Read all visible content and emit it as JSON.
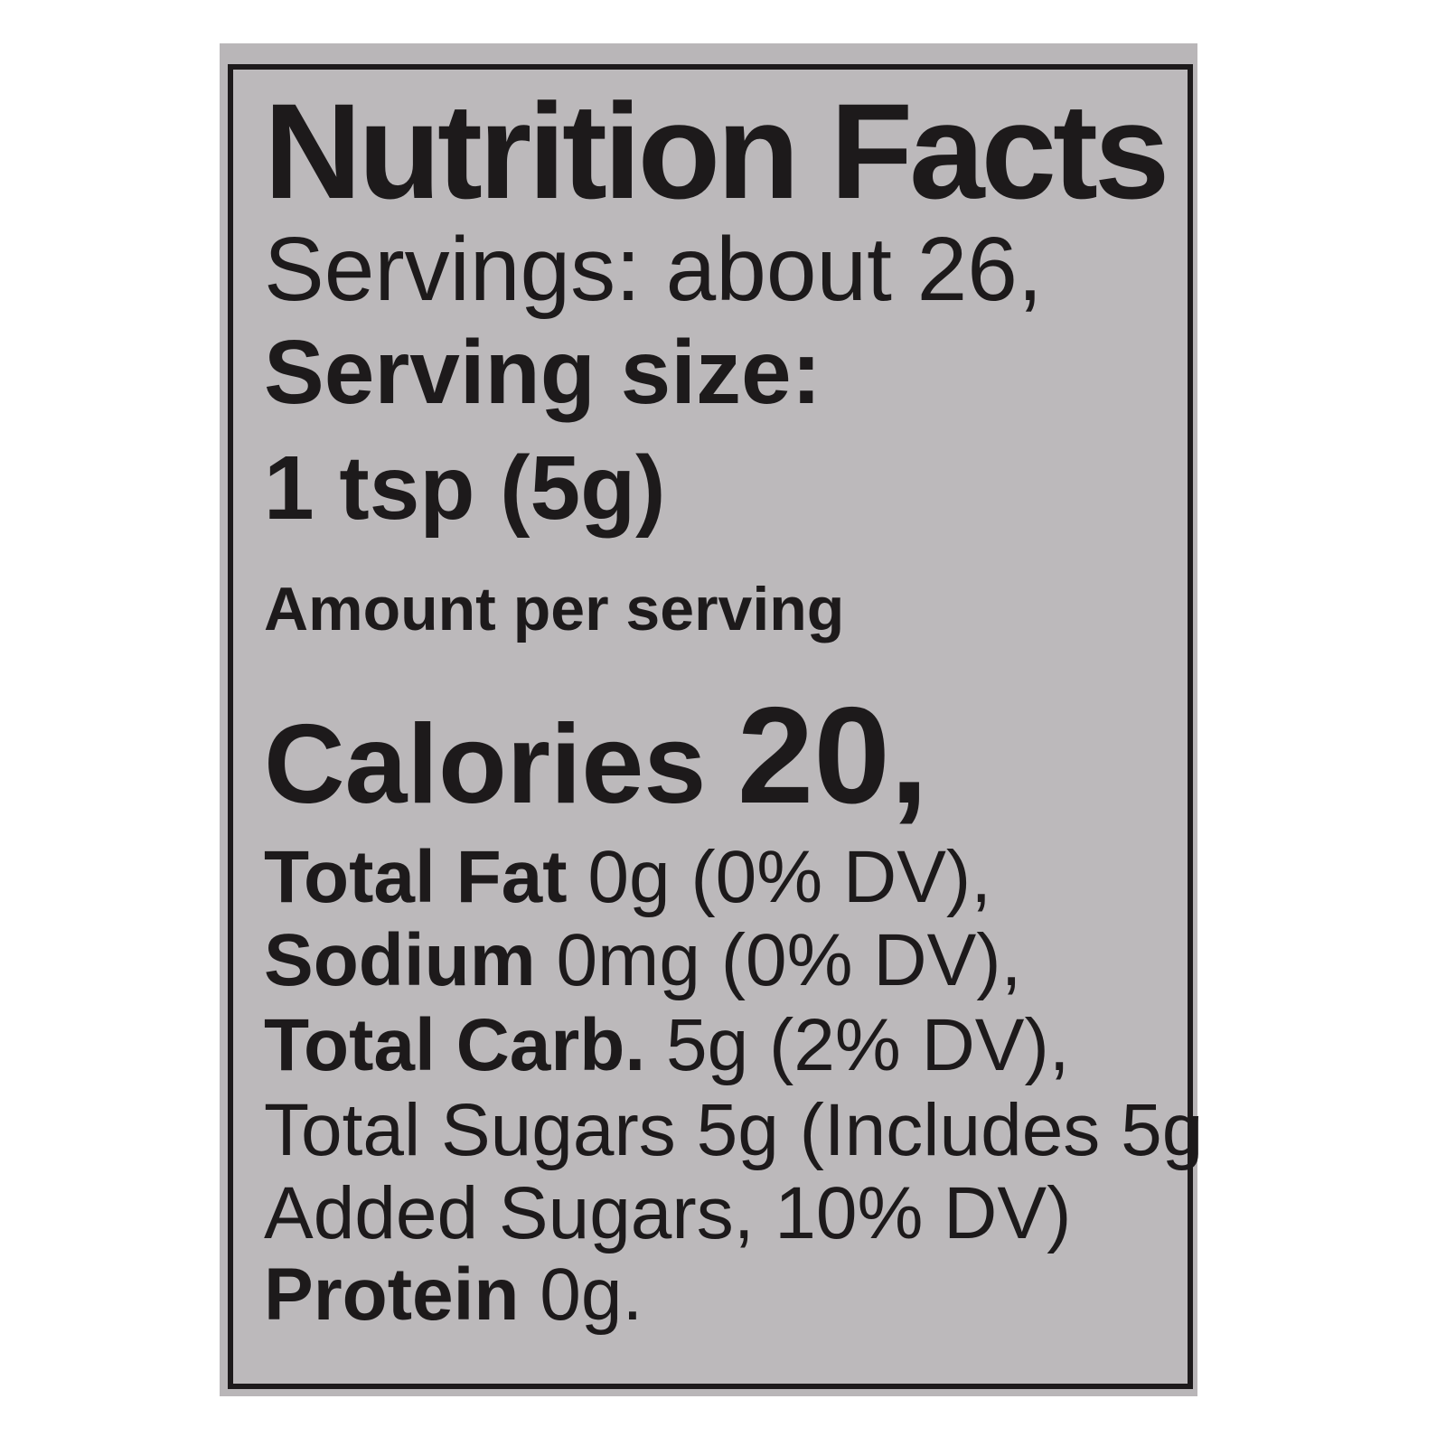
{
  "label": {
    "title": "Nutrition Facts",
    "servings": "Servings: about 26,",
    "serving_size_label": "Serving size:",
    "serving_size_value": "1 tsp (5g)",
    "amount_per_serving": "Amount per serving",
    "calories_label": "Calories",
    "calories_value": "20,",
    "nutrients": [
      {
        "name": "Total Fat",
        "value": "0g (0% DV),"
      },
      {
        "name": "Sodium",
        "value": "0mg (0% DV),"
      },
      {
        "name": "Total Carb.",
        "value": "5g (2% DV),"
      }
    ],
    "total_sugars": "Total Sugars 5g (Includes 5g",
    "added_sugars": "Added Sugars, 10% DV)",
    "protein": {
      "name": "Protein",
      "value": "0g."
    }
  },
  "colors": {
    "text": "#1d1a1b",
    "label_background": "#bcb9bb"
  }
}
